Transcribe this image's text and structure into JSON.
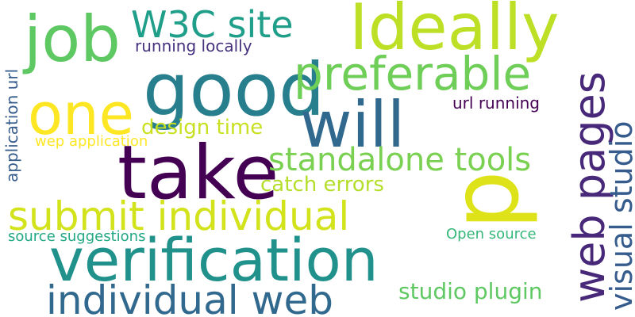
{
  "words": [
    {
      "text": "job",
      "color": "#5ec962"
    },
    {
      "text": "W3C site",
      "color": "#1f9e89"
    },
    {
      "text": "Ideally",
      "color": "#bddf26"
    },
    {
      "text": "running locally",
      "color": "#46327e"
    },
    {
      "text": "good",
      "color": "#277f8e"
    },
    {
      "text": "preferable",
      "color": "#6ece58"
    },
    {
      "text": "application url",
      "color": "#365c8d"
    },
    {
      "text": "one",
      "color": "#fde725"
    },
    {
      "text": "will",
      "color": "#31688e"
    },
    {
      "text": "web pages",
      "color": "#482878"
    },
    {
      "text": "visual studio",
      "color": "#365c8d"
    },
    {
      "text": "url running",
      "color": "#440154"
    },
    {
      "text": "design time",
      "color": "#c8e020"
    },
    {
      "text": "wep application",
      "color": "#fde725"
    },
    {
      "text": "take",
      "color": "#440154"
    },
    {
      "text": "standalone tools",
      "color": "#7ad151"
    },
    {
      "text": "catch errors",
      "color": "#b5de2b"
    },
    {
      "text": "p",
      "color": "#dde318"
    },
    {
      "text": "submit individual",
      "color": "#d2e21b"
    },
    {
      "text": "source suggestions",
      "color": "#22a884"
    },
    {
      "text": "Open source",
      "color": "#35b779"
    },
    {
      "text": "verification",
      "color": "#21918c"
    },
    {
      "text": "studio plugin",
      "color": "#5ec962"
    },
    {
      "text": "individual web",
      "color": "#31688e"
    }
  ]
}
